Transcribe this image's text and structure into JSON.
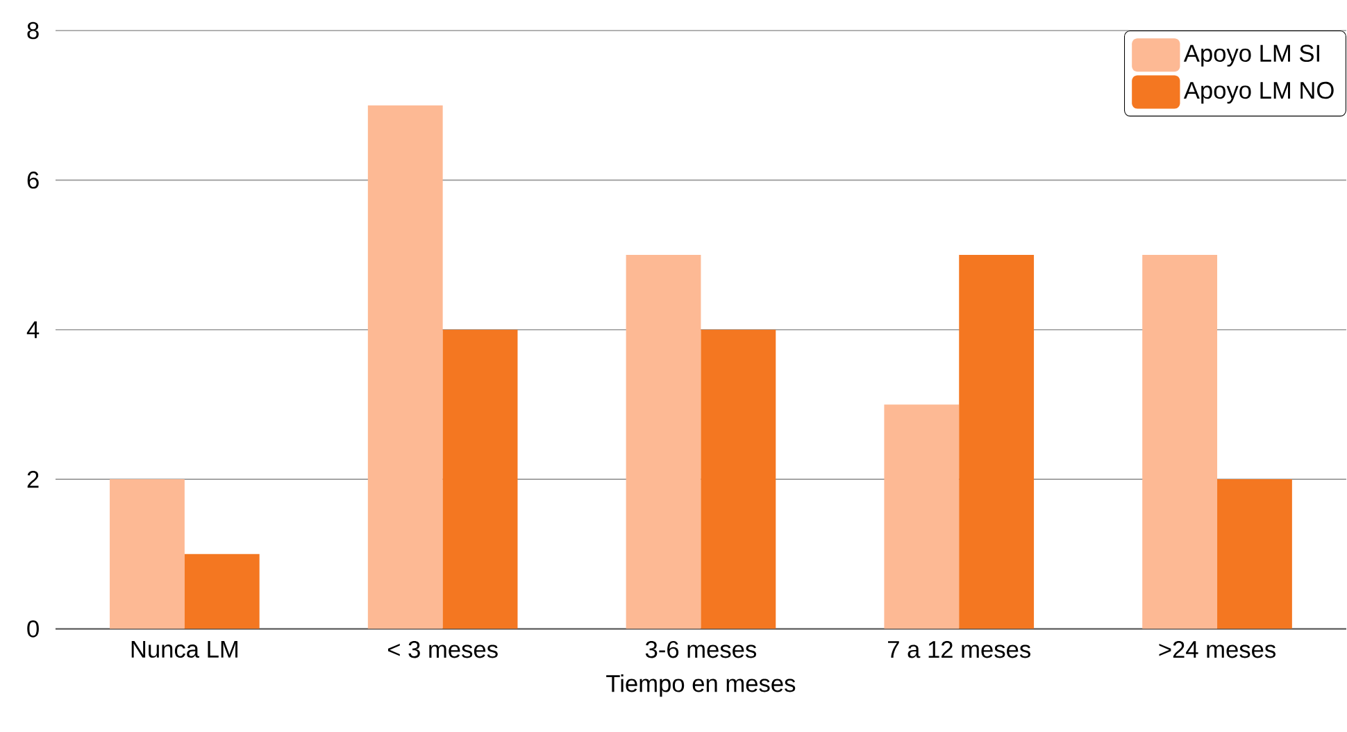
{
  "chart_data": {
    "type": "bar",
    "xlabel": "Tiempo en meses",
    "categories": [
      "Nunca LM",
      "< 3 meses",
      "3-6 meses",
      "7 a 12 meses",
      ">24 meses"
    ],
    "series": [
      {
        "name": "Apoyo LM SI",
        "color": "#fdb994",
        "values": [
          2,
          7,
          5,
          3,
          5
        ]
      },
      {
        "name": "Apoyo LM NO",
        "color": "#f47721",
        "values": [
          1,
          4,
          4,
          5,
          2
        ]
      }
    ],
    "ylim": [
      0,
      8
    ],
    "yticks": [
      0,
      2,
      4,
      6,
      8
    ],
    "grid": "y",
    "legend": "top right"
  }
}
